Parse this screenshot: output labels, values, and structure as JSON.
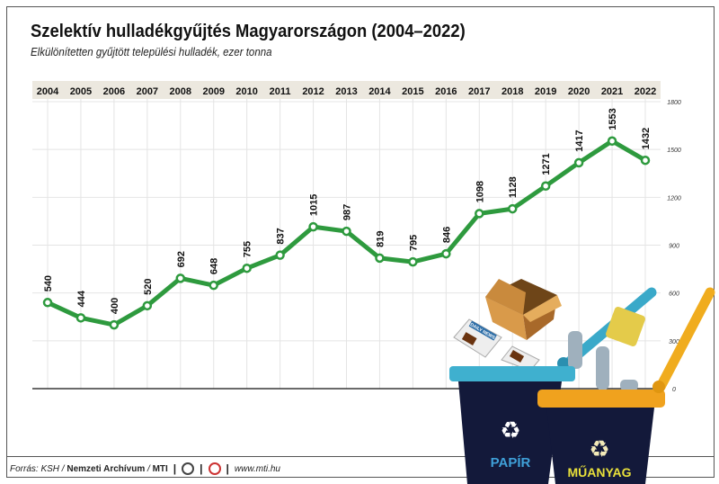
{
  "title": "Szelektív hulladékgyűjtés Magyarországon (2004–2022)",
  "subtitle": "Elkülönítetten gyűjtött települési hulladék, ezer tonna",
  "chart_data": {
    "type": "line",
    "title": "Szelektív hulladékgyűjtés Magyarországon (2004–2022)",
    "subtitle": "Elkülönítetten gyűjtött települési hulladék, ezer tonna",
    "categories": [
      "2004",
      "2005",
      "2006",
      "2007",
      "2008",
      "2009",
      "2010",
      "2011",
      "2012",
      "2013",
      "2014",
      "2015",
      "2016",
      "2017",
      "2018",
      "2019",
      "2020",
      "2021",
      "2022"
    ],
    "values": [
      540,
      444,
      400,
      520,
      692,
      648,
      755,
      837,
      1015,
      987,
      819,
      795,
      846,
      1098,
      1128,
      1271,
      1417,
      1553,
      1432
    ],
    "ylim": [
      0,
      1800
    ],
    "yticks": [
      0,
      300,
      600,
      900,
      1200,
      1500,
      1800
    ],
    "ylabel": "",
    "xlabel": "",
    "grid": true,
    "line_color": "#2e9a3e"
  },
  "illustration": {
    "bin1_label": "PAPÍR",
    "bin2_label": "MŰANYAG",
    "newspaper_text": "DAILY NEWS"
  },
  "footer": {
    "source_prefix": "Forrás: KSH /",
    "archive": "Nemzeti Archívum",
    "slash": "/",
    "agency": "MTI",
    "sep": "|",
    "url": "www.mti.hu"
  }
}
